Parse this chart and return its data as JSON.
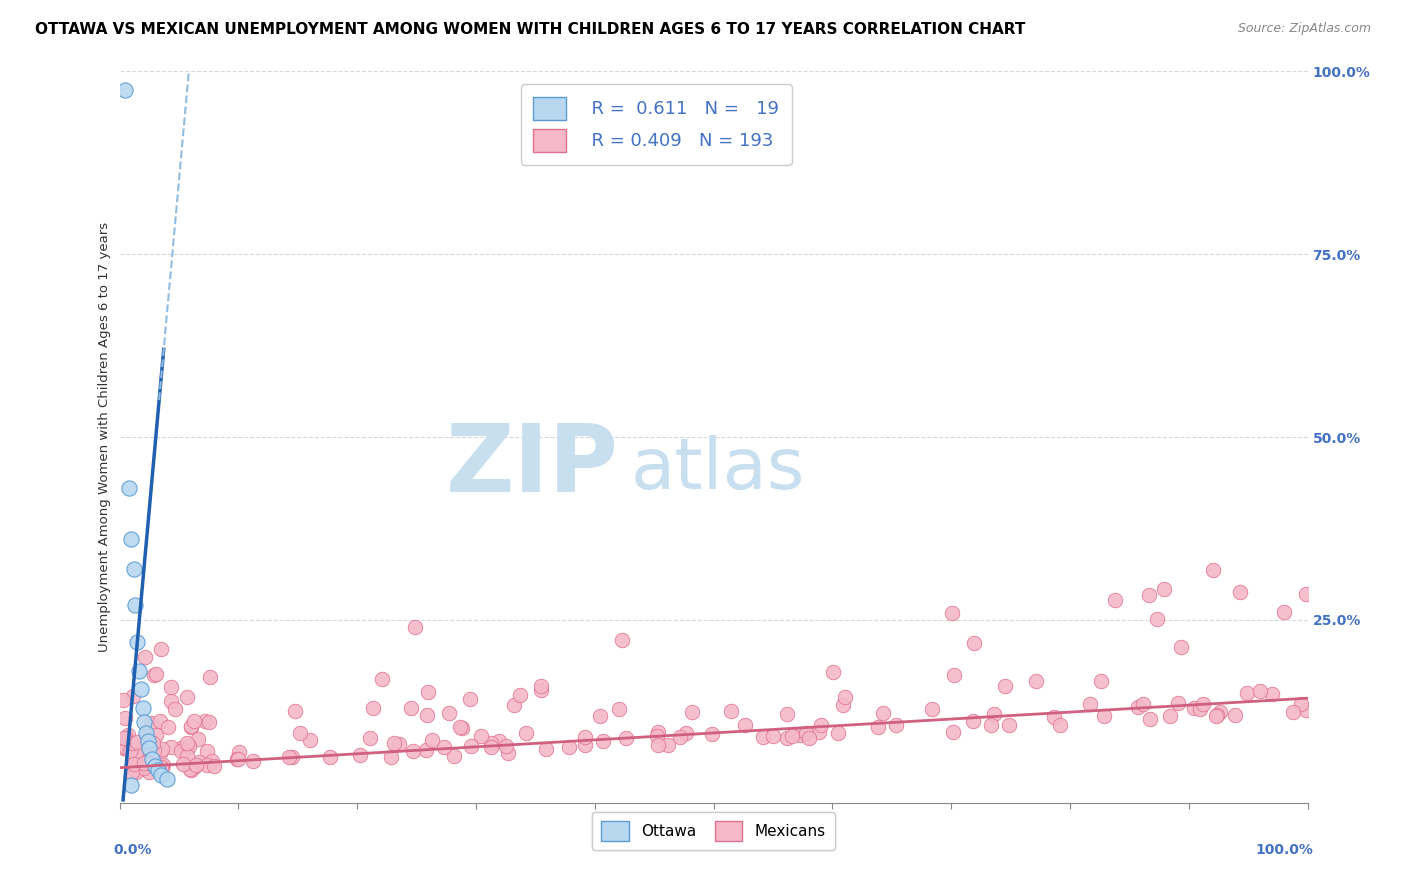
{
  "title": "OTTAWA VS MEXICAN UNEMPLOYMENT AMONG WOMEN WITH CHILDREN AGES 6 TO 17 YEARS CORRELATION CHART",
  "source": "Source: ZipAtlas.com",
  "ylabel": "Unemployment Among Women with Children Ages 6 to 17 years",
  "ytick_labels_right": [
    "100.0%",
    "75.0%",
    "50.0%",
    "25.0%"
  ],
  "ytick_values": [
    1.0,
    0.75,
    0.5,
    0.25
  ],
  "legend_entries": [
    {
      "label": "Ottawa",
      "color_fill": "#b8d8f0",
      "color_edge": "#5b9bd5",
      "R": "0.611",
      "N": "19"
    },
    {
      "label": "Mexicans",
      "color_fill": "#f4b8c8",
      "color_edge": "#e07090",
      "R": "0.409",
      "N": "193"
    }
  ],
  "ottawa_line_color": "#2060b0",
  "ottawa_dash_color": "#90bce0",
  "mexicans_line_color": "#d06080",
  "watermark_zip_color": "#c8dff0",
  "watermark_atlas_color": "#c8dff0",
  "background_color": "#ffffff",
  "grid_color": "#d8d8d8",
  "title_fontsize": 11,
  "axis_label_fontsize": 9.5,
  "tick_fontsize": 10,
  "legend_fontsize": 13,
  "source_fontsize": 9
}
